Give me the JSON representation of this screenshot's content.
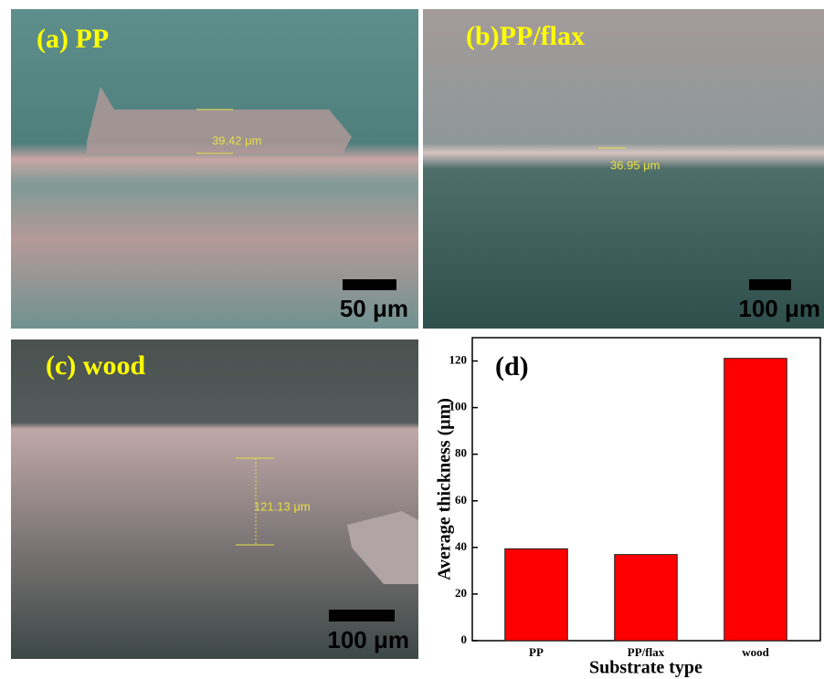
{
  "panels": [
    {
      "label": "(a) PP",
      "measurement": "39.42 μm",
      "scale_bar": "50 μm"
    },
    {
      "label": "(b)PP/flax",
      "measurement": "36.95 μm",
      "scale_bar": "100 μm"
    },
    {
      "label": "(c) wood",
      "measurement": "121.13 μm",
      "scale_bar": "100 μm"
    }
  ],
  "chart_data": {
    "type": "bar",
    "panel_label": "(d)",
    "categories": [
      "PP",
      "PP/flax",
      "wood"
    ],
    "values": [
      39.42,
      36.95,
      121.13
    ],
    "color": "#ff0000",
    "xlabel": "Substrate type",
    "ylabel": "Average thickness (μm)",
    "ylim": [
      0,
      130
    ],
    "yticks": [
      0,
      20,
      40,
      60,
      80,
      100,
      120
    ]
  }
}
